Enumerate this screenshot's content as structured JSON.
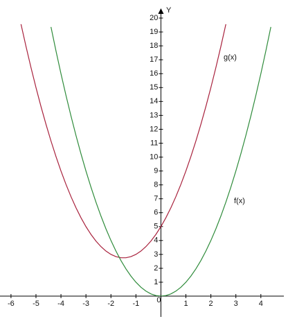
{
  "chart_data": {
    "type": "line",
    "y_axis_label": "Y",
    "x": [
      -5.6,
      -5.4,
      -5.2,
      -5.0,
      -4.8,
      -4.6,
      -4.4,
      -4.2,
      -4.0,
      -3.8,
      -3.6,
      -3.4,
      -3.2,
      -3.0,
      -2.8,
      -2.6,
      -2.4,
      -2.2,
      -2.0,
      -1.8,
      -1.6,
      -1.4,
      -1.2,
      -1.0,
      -0.8,
      -0.6,
      -0.4,
      -0.2,
      0,
      0.2,
      0.4,
      0.6,
      0.8,
      1.0,
      1.2,
      1.4,
      1.6,
      1.8,
      2.0,
      2.2,
      2.4,
      2.6,
      2.8,
      3.0,
      3.2,
      3.4,
      3.6,
      3.8,
      4.0,
      4.2,
      4.4
    ],
    "series": [
      {
        "name": "g(x)",
        "color": "#a8213c",
        "values": [
          19.56,
          17.96,
          16.44,
          15,
          13.64,
          12.36,
          11.16,
          10.04,
          9,
          8.04,
          7.16,
          6.36,
          5.64,
          5,
          4.44,
          3.96,
          3.56,
          3.24,
          3,
          2.84,
          2.76,
          2.76,
          2.84,
          3,
          3.24,
          3.56,
          3.96,
          4.44,
          5,
          5.64,
          6.36,
          7.16,
          8.04,
          9,
          10.04,
          11.16,
          12.36,
          13.64,
          15,
          16.44,
          17.96,
          19.56,
          null,
          null,
          null,
          null,
          null,
          null,
          null,
          null,
          null
        ]
      },
      {
        "name": "f(x)",
        "color": "#2e8b3a",
        "values": [
          null,
          null,
          null,
          null,
          null,
          null,
          19.36,
          17.64,
          16,
          14.44,
          12.96,
          11.56,
          10.24,
          9,
          7.84,
          6.76,
          5.76,
          4.84,
          4,
          3.24,
          2.56,
          1.96,
          1.44,
          1,
          0.64,
          0.36,
          0.16,
          0.04,
          0,
          0.04,
          0.16,
          0.36,
          0.64,
          1,
          1.44,
          1.96,
          2.56,
          3.24,
          4,
          4.84,
          5.76,
          6.76,
          7.84,
          9,
          10.24,
          11.56,
          12.96,
          14.44,
          16,
          17.64,
          19.36
        ]
      }
    ],
    "xlim": [
      -6.44,
      4.92
    ],
    "ylim": [
      0,
      20.6
    ],
    "xticks": [
      -6,
      -5,
      -4,
      -3,
      -2,
      -1,
      0,
      1,
      2,
      3,
      4
    ],
    "yticks": [
      1,
      2,
      3,
      4,
      5,
      6,
      7,
      8,
      9,
      10,
      11,
      12,
      13,
      14,
      15,
      16,
      17,
      18,
      19,
      20
    ]
  }
}
